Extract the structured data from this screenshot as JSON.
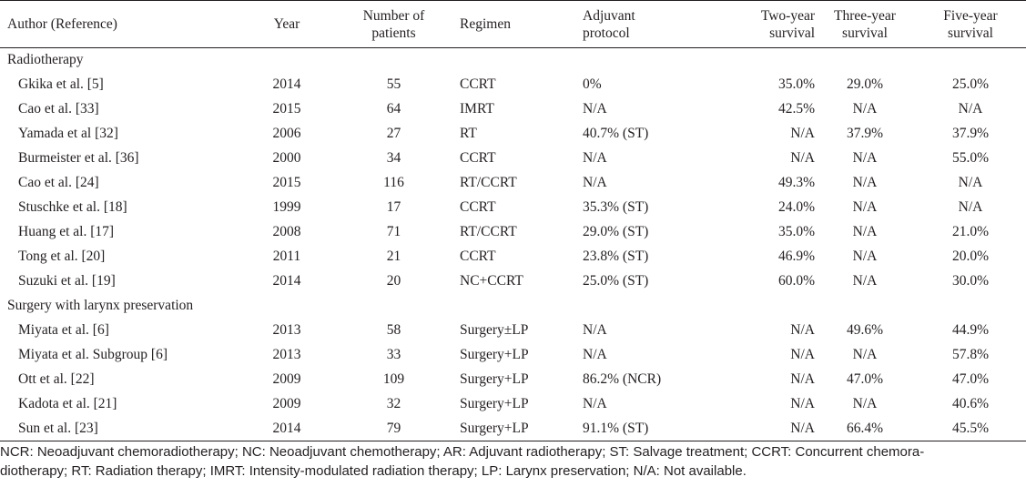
{
  "headers": {
    "author": "Author (Reference)",
    "year": "Year",
    "patients_line1": "Number of",
    "patients_line2": "patients",
    "regimen": "Regimen",
    "adjuvant_line1": "Adjuvant",
    "adjuvant_line2": "protocol",
    "two_year_line1": "Two-year",
    "two_year_line2": "survival",
    "three_year_line1": "Three-year",
    "three_year_line2": "survival",
    "five_year_line1": "Five-year",
    "five_year_line2": "survival"
  },
  "sections": [
    {
      "title": "Radiotherapy",
      "rows": [
        {
          "author": "Gkika et al. [5]",
          "year": "2014",
          "patients": "55",
          "regimen": "CCRT",
          "adjuvant": "0%",
          "two_year": "35.0%",
          "three_year": "29.0%",
          "five_year": "25.0%"
        },
        {
          "author": "Cao et al. [33]",
          "year": "2015",
          "patients": "64",
          "regimen": "IMRT",
          "adjuvant": "N/A",
          "two_year": "42.5%",
          "three_year": "N/A",
          "five_year": "N/A"
        },
        {
          "author": "Yamada et al [32]",
          "year": "2006",
          "patients": "27",
          "regimen": "RT",
          "adjuvant": "40.7% (ST)",
          "two_year": "N/A",
          "three_year": "37.9%",
          "five_year": "37.9%"
        },
        {
          "author": "Burmeister et al. [36]",
          "year": "2000",
          "patients": "34",
          "regimen": "CCRT",
          "adjuvant": "N/A",
          "two_year": "N/A",
          "three_year": "N/A",
          "five_year": "55.0%"
        },
        {
          "author": "Cao et al. [24]",
          "year": "2015",
          "patients": "116",
          "regimen": "RT/CCRT",
          "adjuvant": "N/A",
          "two_year": "49.3%",
          "three_year": "N/A",
          "five_year": "N/A"
        },
        {
          "author": "Stuschke et al. [18]",
          "year": "1999",
          "patients": "17",
          "regimen": "CCRT",
          "adjuvant": "35.3% (ST)",
          "two_year": "24.0%",
          "three_year": "N/A",
          "five_year": "N/A"
        },
        {
          "author": "Huang et al. [17]",
          "year": "2008",
          "patients": "71",
          "regimen": "RT/CCRT",
          "adjuvant": "29.0% (ST)",
          "two_year": "35.0%",
          "three_year": "N/A",
          "five_year": "21.0%"
        },
        {
          "author": "Tong et al. [20]",
          "year": "2011",
          "patients": "21",
          "regimen": "CCRT",
          "adjuvant": "23.8% (ST)",
          "two_year": "46.9%",
          "three_year": "N/A",
          "five_year": "20.0%"
        },
        {
          "author": "Suzuki et al. [19]",
          "year": "2014",
          "patients": "20",
          "regimen": "NC+CCRT",
          "adjuvant": "25.0% (ST)",
          "two_year": "60.0%",
          "three_year": "N/A",
          "five_year": "30.0%"
        }
      ]
    },
    {
      "title": "Surgery with larynx preservation",
      "rows": [
        {
          "author": "Miyata et al. [6]",
          "year": "2013",
          "patients": "58",
          "regimen": "Surgery±LP",
          "adjuvant": "N/A",
          "two_year": "N/A",
          "three_year": "49.6%",
          "five_year": "44.9%"
        },
        {
          "author": "Miyata et al. Subgroup [6]",
          "year": "2013",
          "patients": "33",
          "regimen": "Surgery+LP",
          "adjuvant": "N/A",
          "two_year": "N/A",
          "three_year": "N/A",
          "five_year": "57.8%"
        },
        {
          "author": "Ott et al. [22]",
          "year": "2009",
          "patients": "109",
          "regimen": "Surgery+LP",
          "adjuvant": "86.2% (NCR)",
          "two_year": "N/A",
          "three_year": "47.0%",
          "five_year": "47.0%"
        },
        {
          "author": "Kadota et al. [21]",
          "year": "2009",
          "patients": "32",
          "regimen": "Surgery+LP",
          "adjuvant": "N/A",
          "two_year": "N/A",
          "three_year": "N/A",
          "five_year": "40.6%"
        },
        {
          "author": "Sun et al. [23]",
          "year": "2014",
          "patients": "79",
          "regimen": "Surgery+LP",
          "adjuvant": "91.1% (ST)",
          "two_year": "N/A",
          "three_year": "66.4%",
          "five_year": "45.5%"
        }
      ]
    }
  ],
  "footnote": "NCR: Neoadjuvant chemoradiotherapy; NC: Neoadjuvant chemotherapy; AR: Adjuvant radiotherapy; ST: Salvage treatment; CCRT: Concurrent chemora-\ndiotherapy; RT: Radiation therapy; IMRT: Intensity-modulated radiation therapy; LP: Larynx preservation; N/A: Not available."
}
